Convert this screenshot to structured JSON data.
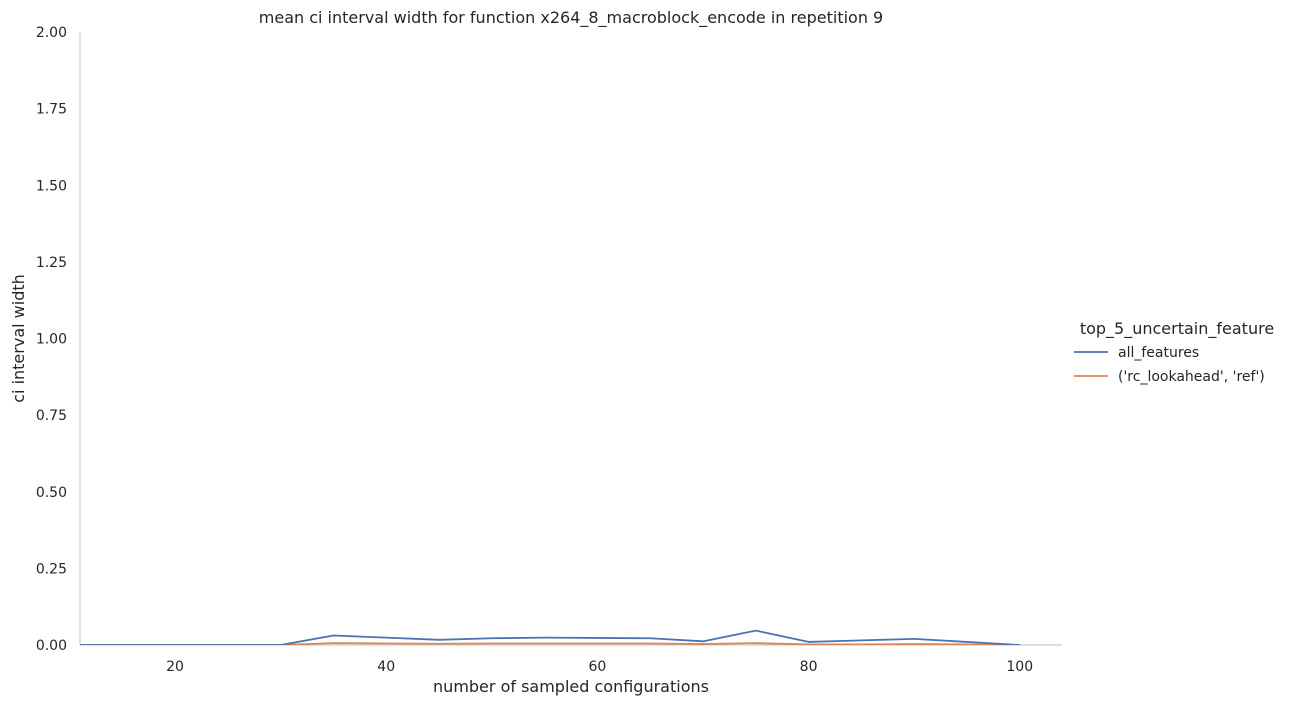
{
  "chart_data": {
    "type": "line",
    "title": "mean ci interval width for function x264_8_macroblock_encode in repetition 9",
    "xlabel": "number of sampled configurations",
    "ylabel": "ci interval width",
    "xlim": [
      11,
      104
    ],
    "ylim": [
      0,
      2
    ],
    "x_ticks": [
      20,
      40,
      60,
      80,
      100
    ],
    "y_ticks": [
      0,
      0.25,
      0.5,
      0.75,
      1.0,
      1.25,
      1.5,
      1.75,
      2.0
    ],
    "x_tick_labels": [
      "20",
      "40",
      "60",
      "80",
      "100"
    ],
    "y_tick_labels": [
      "0.00",
      "0.25",
      "0.50",
      "0.75",
      "1.00",
      "1.25",
      "1.50",
      "1.75",
      "2.00"
    ],
    "grid": false,
    "legend": {
      "title": "top_5_uncertain_feature",
      "placement": "right"
    },
    "series": [
      {
        "name": "all_features",
        "color": "#4c72b0",
        "x": [
          10,
          15,
          20,
          25,
          30,
          35,
          40,
          45,
          50,
          55,
          60,
          65,
          70,
          75,
          80,
          85,
          90,
          95,
          100
        ],
        "y": [
          0,
          0,
          0,
          0,
          0,
          0.031,
          0.024,
          0.017,
          0.022,
          0.024,
          0.023,
          0.022,
          0.012,
          0.047,
          0.01,
          0.015,
          0.02,
          0.01,
          0
        ]
      },
      {
        "name": "('rc_lookahead', 'ref')",
        "color": "#dd8452",
        "x": [
          10,
          15,
          20,
          25,
          30,
          35,
          40,
          45,
          50,
          55,
          60,
          65,
          70,
          75,
          80,
          85,
          90,
          95,
          100
        ],
        "y": [
          0,
          0,
          0,
          0,
          0,
          0.006,
          0.005,
          0.004,
          0.005,
          0.005,
          0.005,
          0.005,
          0.003,
          0.006,
          0.002,
          0.002,
          0.003,
          0.002,
          0
        ]
      }
    ]
  }
}
